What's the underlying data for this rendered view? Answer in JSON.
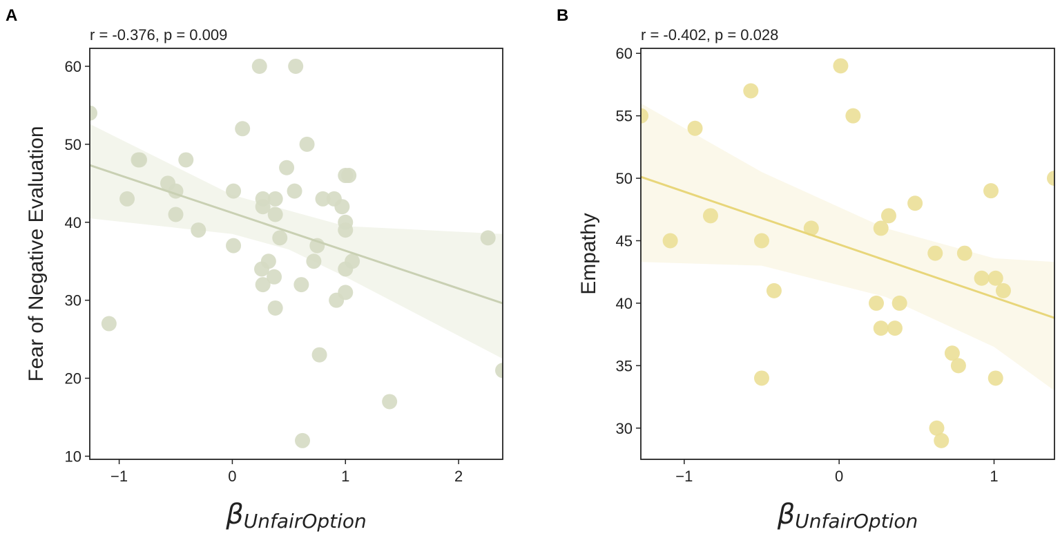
{
  "chart_data": [
    {
      "type": "scatter",
      "panel_label": "A",
      "title": "r = -0.376, p = 0.009",
      "xlabel_symbol": "β",
      "xlabel_sub": "UnfairOption",
      "ylabel": "Fear of Negative Evaluation",
      "xlim": [
        -1.26,
        2.39
      ],
      "ylim": [
        9.6,
        62.3
      ],
      "xticks": [
        -1,
        0,
        1,
        2
      ],
      "xtick_labels": [
        "−1",
        "0",
        "1",
        "2"
      ],
      "yticks": [
        10,
        20,
        30,
        40,
        50,
        60
      ],
      "ytick_labels": [
        "10",
        "20",
        "30",
        "40",
        "50",
        "60"
      ],
      "point_color": "#d5dac3",
      "line_color": "#c9d0b3",
      "band_color": "#f3f5ec",
      "points": [
        [
          -1.26,
          54
        ],
        [
          -1.09,
          27
        ],
        [
          -0.93,
          43
        ],
        [
          -0.83,
          48
        ],
        [
          -0.82,
          48
        ],
        [
          -0.57,
          45
        ],
        [
          -0.5,
          44
        ],
        [
          -0.5,
          41
        ],
        [
          -0.41,
          48
        ],
        [
          -0.3,
          39
        ],
        [
          0.01,
          44
        ],
        [
          0.01,
          37
        ],
        [
          0.09,
          52
        ],
        [
          0.24,
          60
        ],
        [
          0.27,
          43
        ],
        [
          0.27,
          42
        ],
        [
          0.26,
          34
        ],
        [
          0.27,
          32
        ],
        [
          0.32,
          35
        ],
        [
          0.38,
          43
        ],
        [
          0.38,
          41
        ],
        [
          0.37,
          33
        ],
        [
          0.38,
          29
        ],
        [
          0.42,
          38
        ],
        [
          0.48,
          47
        ],
        [
          0.55,
          44
        ],
        [
          0.56,
          60
        ],
        [
          0.61,
          32
        ],
        [
          0.62,
          12
        ],
        [
          0.66,
          50
        ],
        [
          0.72,
          35
        ],
        [
          0.75,
          37
        ],
        [
          0.77,
          23
        ],
        [
          0.8,
          43
        ],
        [
          0.9,
          43
        ],
        [
          0.92,
          30
        ],
        [
          0.97,
          42
        ],
        [
          1.0,
          46
        ],
        [
          1.03,
          46
        ],
        [
          1.0,
          40
        ],
        [
          1.0,
          39
        ],
        [
          1.0,
          34
        ],
        [
          1.0,
          31
        ],
        [
          1.06,
          35
        ],
        [
          1.39,
          17
        ],
        [
          2.26,
          38
        ],
        [
          2.39,
          21
        ]
      ],
      "regression": {
        "slope": -4.85,
        "intercept": 41.2
      },
      "ci": {
        "x": [
          -1.26,
          0,
          0.5,
          1,
          2.39
        ],
        "upper": [
          52.6,
          43.5,
          41.5,
          39.5,
          38.5
        ],
        "lower": [
          40.5,
          38.5,
          36.5,
          33.0,
          22.5
        ]
      }
    },
    {
      "type": "scatter",
      "panel_label": "B",
      "title": "r = -0.402, p = 0.028",
      "xlabel_symbol": "β",
      "xlabel_sub": "UnfairOption",
      "ylabel": "Empathy",
      "xlim": [
        -1.28,
        1.39
      ],
      "ylim": [
        27.5,
        60.4
      ],
      "xticks": [
        -1,
        0,
        1
      ],
      "xtick_labels": [
        "−1",
        "0",
        "1"
      ],
      "yticks": [
        30,
        35,
        40,
        45,
        50,
        55,
        60
      ],
      "ytick_labels": [
        "30",
        "35",
        "40",
        "45",
        "50",
        "55",
        "60"
      ],
      "point_color": "#ebdf97",
      "line_color": "#e8d67a",
      "band_color": "#fbf8ea",
      "points": [
        [
          -1.28,
          55
        ],
        [
          -1.09,
          45
        ],
        [
          -0.93,
          54
        ],
        [
          -0.83,
          47
        ],
        [
          -0.57,
          57
        ],
        [
          -0.5,
          45
        ],
        [
          -0.5,
          34
        ],
        [
          -0.42,
          41
        ],
        [
          -0.18,
          46
        ],
        [
          0.01,
          59
        ],
        [
          0.09,
          55
        ],
        [
          0.24,
          40
        ],
        [
          0.27,
          46
        ],
        [
          0.27,
          38
        ],
        [
          0.32,
          47
        ],
        [
          0.36,
          38
        ],
        [
          0.39,
          40
        ],
        [
          0.49,
          48
        ],
        [
          0.62,
          44
        ],
        [
          0.63,
          30
        ],
        [
          0.66,
          29
        ],
        [
          0.73,
          36
        ],
        [
          0.77,
          35
        ],
        [
          0.81,
          44
        ],
        [
          0.92,
          42
        ],
        [
          0.98,
          49
        ],
        [
          1.01,
          42
        ],
        [
          1.01,
          34
        ],
        [
          1.06,
          41
        ],
        [
          1.39,
          50
        ]
      ],
      "regression": {
        "slope": -4.23,
        "intercept": 44.7
      },
      "ci": {
        "x": [
          -1.28,
          -0.5,
          0.3,
          1,
          1.39
        ],
        "upper": [
          56.0,
          50.5,
          46.0,
          43.6,
          43.3
        ],
        "lower": [
          43.3,
          43.0,
          40.5,
          36.5,
          33.0
        ]
      }
    }
  ]
}
